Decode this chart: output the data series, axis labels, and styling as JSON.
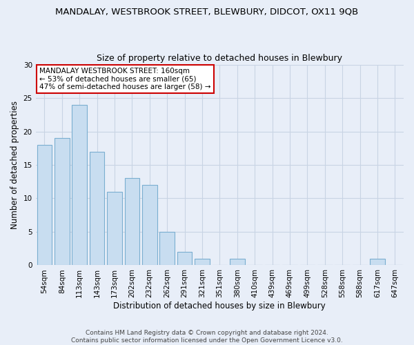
{
  "title": "MANDALAY, WESTBROOK STREET, BLEWBURY, DIDCOT, OX11 9QB",
  "subtitle": "Size of property relative to detached houses in Blewbury",
  "xlabel": "Distribution of detached houses by size in Blewbury",
  "ylabel": "Number of detached properties",
  "categories": [
    "54sqm",
    "84sqm",
    "113sqm",
    "143sqm",
    "173sqm",
    "202sqm",
    "232sqm",
    "262sqm",
    "291sqm",
    "321sqm",
    "351sqm",
    "380sqm",
    "410sqm",
    "439sqm",
    "469sqm",
    "499sqm",
    "528sqm",
    "558sqm",
    "588sqm",
    "617sqm",
    "647sqm"
  ],
  "values": [
    18,
    19,
    24,
    17,
    11,
    13,
    12,
    5,
    2,
    1,
    0,
    1,
    0,
    0,
    0,
    0,
    0,
    0,
    0,
    1,
    0
  ],
  "bar_color": "#c8ddf0",
  "bar_edge_color": "#7aaed0",
  "grid_color": "#c8d4e4",
  "background_color": "#e8eef8",
  "annotation_text": "MANDALAY WESTBROOK STREET: 160sqm\n← 53% of detached houses are smaller (65)\n47% of semi-detached houses are larger (58) →",
  "annotation_box_color": "#ffffff",
  "annotation_border_color": "#cc0000",
  "ylim": [
    0,
    30
  ],
  "yticks": [
    0,
    5,
    10,
    15,
    20,
    25,
    30
  ],
  "footer_text": "Contains HM Land Registry data © Crown copyright and database right 2024.\nContains public sector information licensed under the Open Government Licence v3.0.",
  "title_fontsize": 9.5,
  "subtitle_fontsize": 9,
  "xlabel_fontsize": 8.5,
  "ylabel_fontsize": 8.5,
  "tick_fontsize": 7.5,
  "annotation_fontsize": 7.5,
  "footer_fontsize": 6.5
}
